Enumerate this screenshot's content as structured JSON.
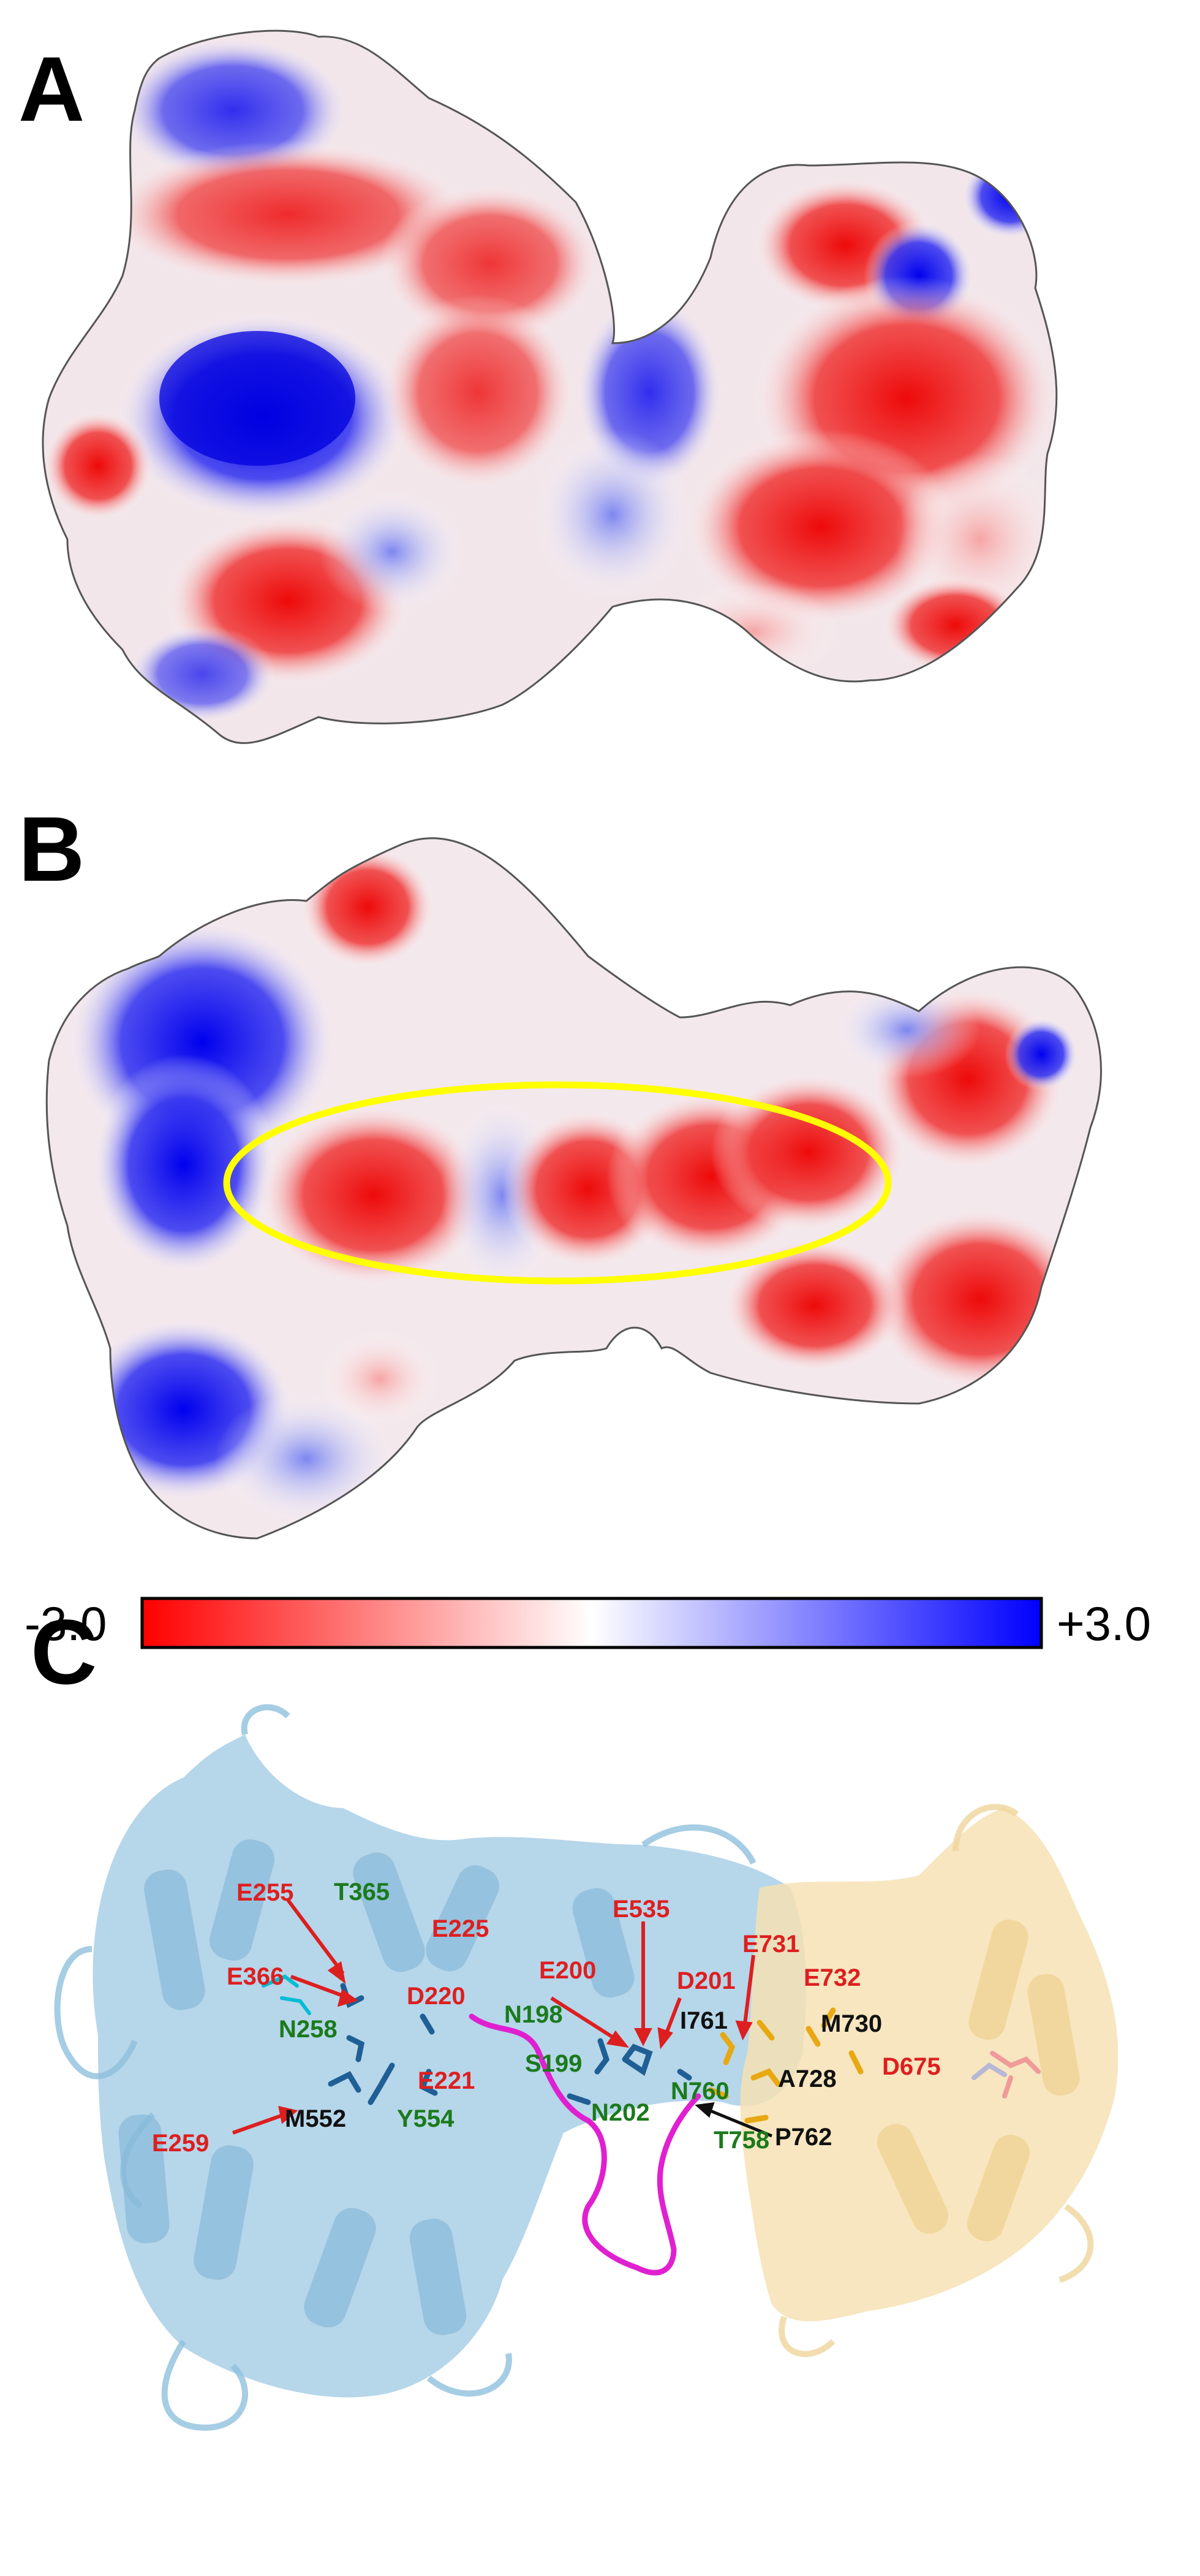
{
  "panels": {
    "a": "A",
    "b": "B",
    "c": "C"
  },
  "scale": {
    "min": "-3.0",
    "max": "+3.0",
    "colors": {
      "negative": "#ff0000",
      "neutral": "#ffffff",
      "positive": "#0000ff"
    }
  },
  "colors": {
    "highlight_ellipse": "#ffff00",
    "red_label": "#dd1f1f",
    "green_label": "#1b7a1b",
    "black_label": "#111111",
    "domain_blue": "#a9cfe6",
    "domain_yellow": "#f6e2b4",
    "loop_magenta": "#e020d0"
  },
  "residues": {
    "E255": "E255",
    "T365": "T365",
    "E225": "E225",
    "E366": "E366",
    "N258": "N258",
    "D220": "D220",
    "E259": "E259",
    "M552": "M552",
    "Y554": "Y554",
    "E221": "E221",
    "N198": "N198",
    "S199": "S199",
    "E200": "E200",
    "E535": "E535",
    "D201": "D201",
    "N202": "N202",
    "E731": "E731",
    "E732": "E732",
    "I761": "I761",
    "M730": "M730",
    "A728": "A728",
    "D675": "D675",
    "N760": "N760",
    "P762": "P762",
    "T758": "T758"
  }
}
